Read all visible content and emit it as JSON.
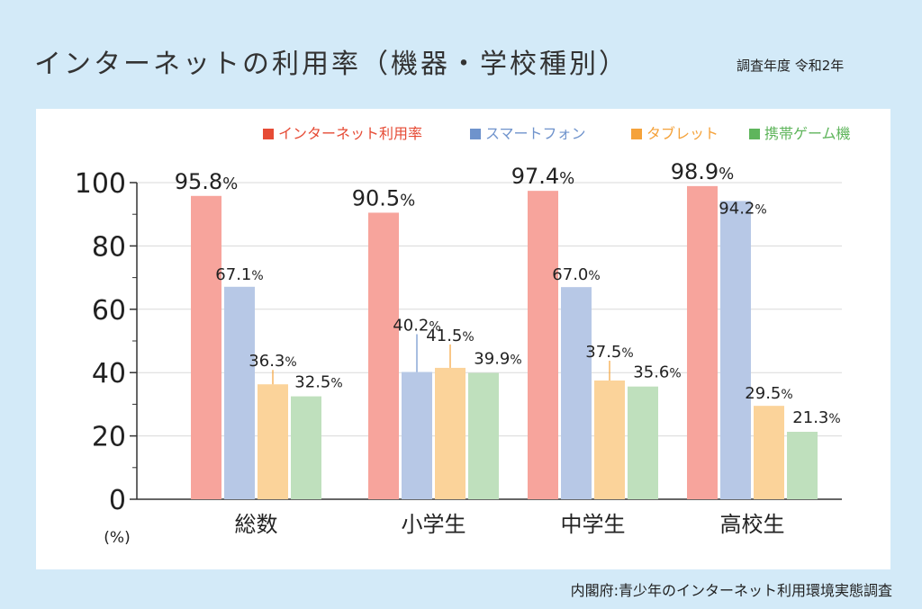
{
  "header": {
    "title": "インターネットの利用率（機器・学校種別）",
    "survey_year": "調査年度 令和2年"
  },
  "source": "内閣府:青少年のインターネット利用環境実態調査",
  "chart_data": {
    "type": "bar",
    "categories": [
      "総数",
      "小学生",
      "中学生",
      "高校生"
    ],
    "series": [
      {
        "name": "インターネット利用率",
        "values": [
          95.8,
          90.5,
          97.4,
          98.9
        ],
        "color": "#f7a49c",
        "legend_color": "#e64b35"
      },
      {
        "name": "スマートフォン",
        "values": [
          67.1,
          40.2,
          67.0,
          94.2
        ],
        "color": "#b7c8e6",
        "legend_color": "#6f93cc"
      },
      {
        "name": "タブレット",
        "values": [
          36.3,
          41.5,
          37.5,
          29.5
        ],
        "color": "#fbd39a",
        "legend_color": "#f5a23a"
      },
      {
        "name": "携帯ゲーム機",
        "values": [
          32.5,
          39.9,
          35.6,
          21.3
        ],
        "color": "#bfe0bd",
        "legend_color": "#5fb55c"
      }
    ],
    "ylim": [
      0,
      100
    ],
    "yticks": [
      0,
      20,
      40,
      60,
      80,
      100
    ],
    "y_unit_label": "(%)",
    "label_suffix": "%",
    "grid": true,
    "legend_position": "top"
  }
}
